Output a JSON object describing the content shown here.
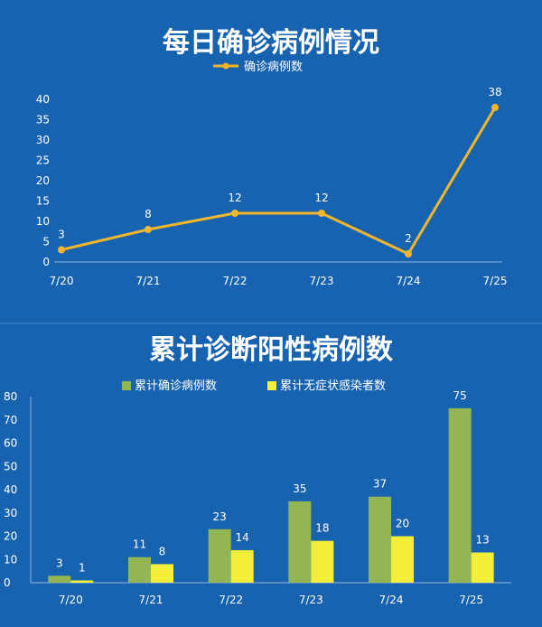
{
  "colors": {
    "background": "#1763b0",
    "line": "#f2b62c",
    "cumulative_confirmed": "#93b553",
    "cumulative_asymptomatic": "#f3ee3a",
    "text": "#ffffff"
  },
  "chart_data": [
    {
      "type": "line",
      "title": "每日确诊病例情况",
      "categories": [
        "7/20",
        "7/21",
        "7/22",
        "7/23",
        "7/24",
        "7/25"
      ],
      "series": [
        {
          "name": "确诊病例数",
          "values": [
            3,
            8,
            12,
            12,
            2,
            38
          ]
        }
      ],
      "ylim": [
        0,
        40
      ],
      "yticks": [
        0,
        5,
        10,
        15,
        20,
        25,
        30,
        35,
        40
      ],
      "grid": false,
      "legend": "top-center",
      "data_labels": true
    },
    {
      "type": "bar",
      "title": "累计诊断阳性病例数",
      "categories": [
        "7/20",
        "7/21",
        "7/22",
        "7/23",
        "7/24",
        "7/25"
      ],
      "series": [
        {
          "name": "累计确诊病例数",
          "values": [
            3,
            11,
            23,
            35,
            37,
            75
          ]
        },
        {
          "name": "累计无症状感染者数",
          "values": [
            1,
            8,
            14,
            18,
            20,
            13
          ]
        }
      ],
      "ylim": [
        0,
        80
      ],
      "yticks": [
        0,
        10,
        20,
        30,
        40,
        50,
        60,
        70,
        80
      ],
      "grid": false,
      "legend": "top-center",
      "data_labels": true
    }
  ]
}
